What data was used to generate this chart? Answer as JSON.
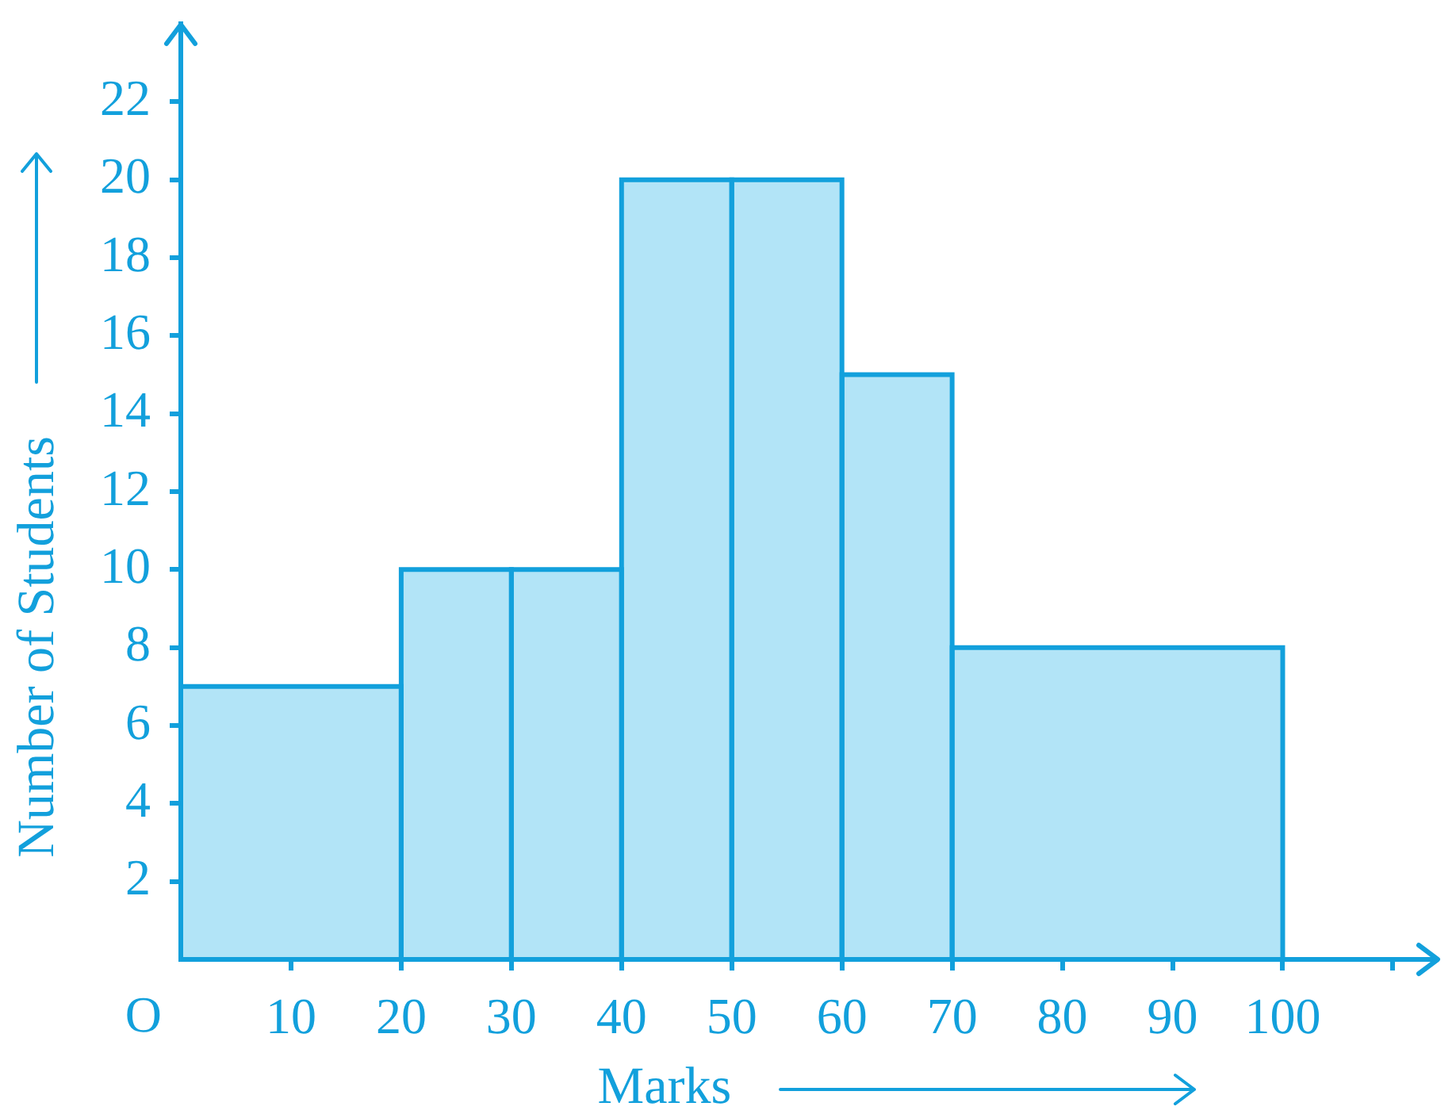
{
  "chart_data": {
    "type": "histogram",
    "xlabel": "Marks",
    "ylabel": "Number of Students",
    "bins": [
      0,
      20,
      30,
      40,
      50,
      60,
      70,
      100
    ],
    "values": [
      7,
      10,
      10,
      20,
      20,
      15,
      8
    ],
    "color": "#b2e4f7",
    "xlim": [
      0,
      114
    ],
    "ylim": [
      0,
      24
    ],
    "xticks": [
      10,
      20,
      30,
      40,
      50,
      60,
      70,
      80,
      90,
      100,
      {
        "value": 110,
        "label": null
      }
    ],
    "yticks": [
      2,
      4,
      6,
      8,
      10,
      12,
      14,
      16,
      18,
      20,
      22
    ],
    "annotations": [
      "O"
    ]
  }
}
